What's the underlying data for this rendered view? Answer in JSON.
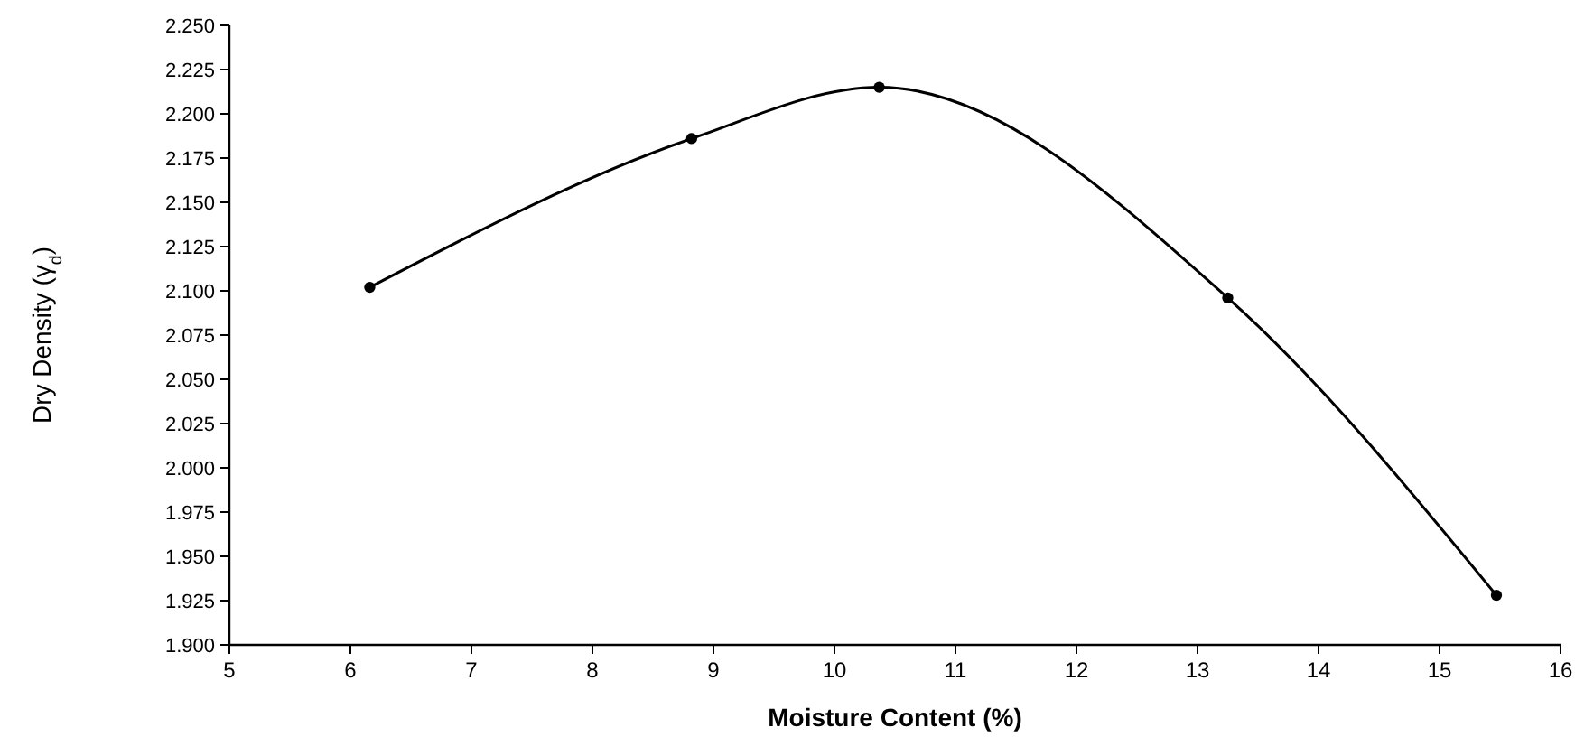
{
  "chart_data": {
    "type": "line",
    "xlabel": "Moisture Content (%)",
    "ylabel": "Dry Density (γ$_{d}$)",
    "x": [
      6.16,
      8.82,
      10.37,
      13.25,
      15.47
    ],
    "series": [
      {
        "color": "#000000",
        "values": [
          2.102,
          2.186,
          2.215,
          2.096,
          1.928
        ]
      }
    ],
    "marker": "circle",
    "grid": false,
    "xlim": [
      5,
      16
    ],
    "xticks": [
      5,
      6,
      7,
      8,
      9,
      10,
      11,
      12,
      13,
      14,
      15,
      16
    ],
    "ylim": [
      1.9,
      2.25
    ],
    "yticks": [
      {
        "value": 1.9,
        "label": "1.900"
      },
      {
        "value": 1.925,
        "label": "1.925"
      },
      {
        "value": 1.95,
        "label": "1.950"
      },
      {
        "value": 1.975,
        "label": "1.975"
      },
      {
        "value": 2.0,
        "label": "2.000"
      },
      {
        "value": 2.025,
        "label": "2.025"
      },
      {
        "value": 2.05,
        "label": "2.050"
      },
      {
        "value": 2.075,
        "label": "2.075"
      },
      {
        "value": 2.1,
        "label": "2.100"
      },
      {
        "value": 2.125,
        "label": "2.125"
      },
      {
        "value": 2.15,
        "label": "2.150"
      },
      {
        "value": 2.175,
        "label": "2.175"
      },
      {
        "value": 2.2,
        "label": "2.200"
      },
      {
        "value": 2.225,
        "label": "2.225"
      },
      {
        "value": 2.25,
        "label": "2.250"
      }
    ]
  }
}
